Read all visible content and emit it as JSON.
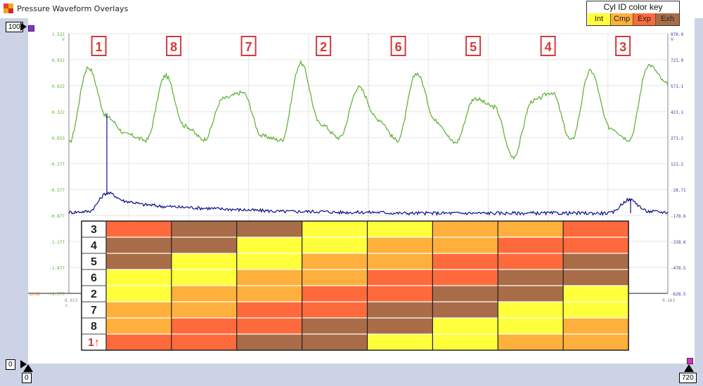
{
  "window": {
    "title": "Pressure Waveform Overlays"
  },
  "key": {
    "title": "Cyl ID color key",
    "items": [
      {
        "label": "Int",
        "color": "#ffff3c"
      },
      {
        "label": "Cmp",
        "color": "#ffb03c"
      },
      {
        "label": "Exp",
        "color": "#ff6a3c"
      },
      {
        "label": "Exh",
        "color": "#a86d48"
      }
    ]
  },
  "markers": {
    "top_left": "100",
    "bottom_left": "0",
    "bottom_axis_left": "0",
    "bottom_axis_right": "720"
  },
  "left_extra_label": "10.00",
  "chart_data": {
    "type": "line",
    "x_unit": "s",
    "x_range": [
      8.913,
      9.163
    ],
    "left_axis_unit": "V",
    "left_axis_ticks": [
      "1.322",
      "0.922",
      "0.622",
      "0.322",
      "0.023",
      "-0.277",
      "-0.577",
      "-0.877",
      "-1.177",
      "-1.477",
      "-1.777"
    ],
    "right_axis_unit": "V",
    "right_axis_ticks": [
      "870.9",
      "721.0",
      "571.1",
      "421.1",
      "271.2",
      "121.2",
      "-28.71",
      "-178.6",
      "-328.6",
      "-478.5",
      "-628.5"
    ],
    "x_ticks": [
      "8.913",
      "8.938",
      "8.963",
      "8.988",
      "9.013",
      "9.038",
      "9.063",
      "9.088",
      "9.113",
      "9.138",
      "9.163"
    ],
    "cylinder_labels": [
      "1",
      "8",
      "7",
      "2",
      "6",
      "5",
      "4",
      "3"
    ],
    "series": [
      {
        "color": "#5aae2e",
        "y": [
          0.02,
          0.92,
          0.32,
          0.12,
          0.05,
          0.82,
          0.22,
          0.06,
          0.55,
          0.62,
          0.1,
          0.05,
          0.97,
          0.25,
          0.08,
          0.68,
          0.3,
          0.05,
          0.85,
          0.28,
          0.02,
          0.55,
          0.45,
          -0.15,
          0.52,
          0.62,
          0.05,
          0.88,
          0.2,
          0.06,
          0.95,
          0.72
        ]
      },
      {
        "color": "#0c0c8a",
        "y": [
          -0.81,
          -0.8,
          -0.58,
          -0.68,
          -0.72,
          -0.74,
          -0.75,
          -0.76,
          -0.77,
          -0.78,
          -0.79,
          -0.8,
          -0.8,
          -0.8,
          -0.81,
          -0.81,
          -0.81,
          -0.82,
          -0.82,
          -0.82,
          -0.82,
          -0.82,
          -0.82,
          -0.82,
          -0.82,
          -0.82,
          -0.82,
          -0.82,
          -0.82,
          -0.66,
          -0.8,
          -0.81
        ]
      }
    ],
    "table": {
      "row_labels": [
        "3",
        "4",
        "5",
        "6",
        "2",
        "7",
        "8",
        "1↑"
      ],
      "states": [
        [
          "Exp",
          "Exh",
          "Exh",
          "Int",
          "Int",
          "Cmp",
          "Cmp",
          "Exp"
        ],
        [
          "Exh",
          "Exh",
          "Int",
          "Int",
          "Cmp",
          "Cmp",
          "Exp",
          "Exp"
        ],
        [
          "Exh",
          "Int",
          "Int",
          "Cmp",
          "Cmp",
          "Exp",
          "Exp",
          "Exh"
        ],
        [
          "Int",
          "Int",
          "Cmp",
          "Cmp",
          "Exp",
          "Exp",
          "Exh",
          "Exh"
        ],
        [
          "Int",
          "Cmp",
          "Cmp",
          "Exp",
          "Exp",
          "Exh",
          "Exh",
          "Int"
        ],
        [
          "Cmp",
          "Cmp",
          "Exp",
          "Exp",
          "Exh",
          "Exh",
          "Int",
          "Int"
        ],
        [
          "Cmp",
          "Exp",
          "Exp",
          "Exh",
          "Exh",
          "Int",
          "Int",
          "Cmp"
        ],
        [
          "Exp",
          "Exp",
          "Exh",
          "Exh",
          "Int",
          "Int",
          "Cmp",
          "Cmp"
        ]
      ]
    }
  }
}
